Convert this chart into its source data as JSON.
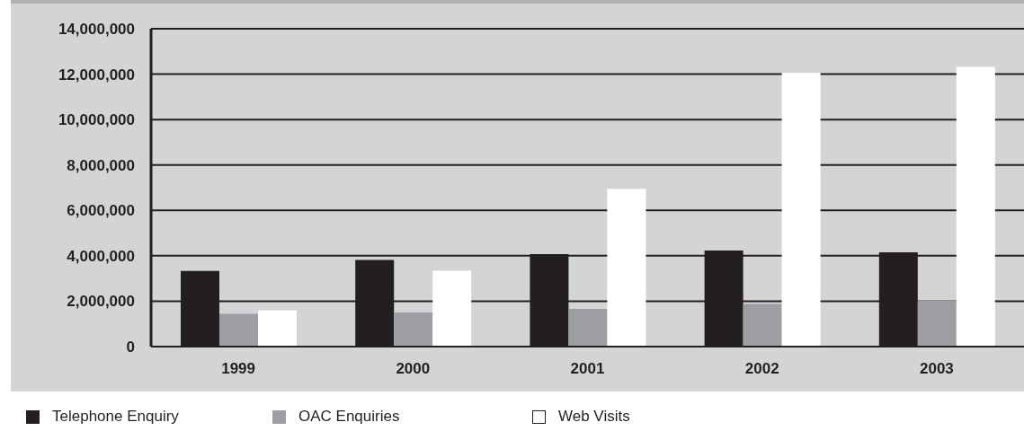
{
  "chart_data": {
    "type": "bar",
    "categories": [
      "1999",
      "2000",
      "2001",
      "2002",
      "2003"
    ],
    "series": [
      {
        "name": "Telephone Enquiry",
        "color": "#231f20",
        "values": [
          3330000,
          3820000,
          4070000,
          4230000,
          4150000
        ]
      },
      {
        "name": "OAC Enquiries",
        "color": "#9d9ea1",
        "values": [
          1440000,
          1500000,
          1660000,
          1880000,
          2040000
        ]
      },
      {
        "name": "Web Visits",
        "color": "#ffffff",
        "values": [
          1590000,
          3340000,
          6950000,
          12060000,
          12320000
        ]
      }
    ],
    "ylim": [
      0,
      14000000
    ],
    "yticks": [
      0,
      {
        "value": 2000000,
        "label": "2,000,000"
      },
      {
        "value": 4000000,
        "label": "4,000,000"
      },
      {
        "value": 6000000,
        "label": "6,000,000"
      },
      {
        "value": 8000000,
        "label": "8,000,000"
      },
      {
        "value": 10000000,
        "label": "10,000,000"
      },
      {
        "value": 12000000,
        "label": "12,000,000"
      },
      {
        "value": 14000000,
        "label": "14,000,000"
      }
    ],
    "grid": "y",
    "legend": "bottom"
  }
}
